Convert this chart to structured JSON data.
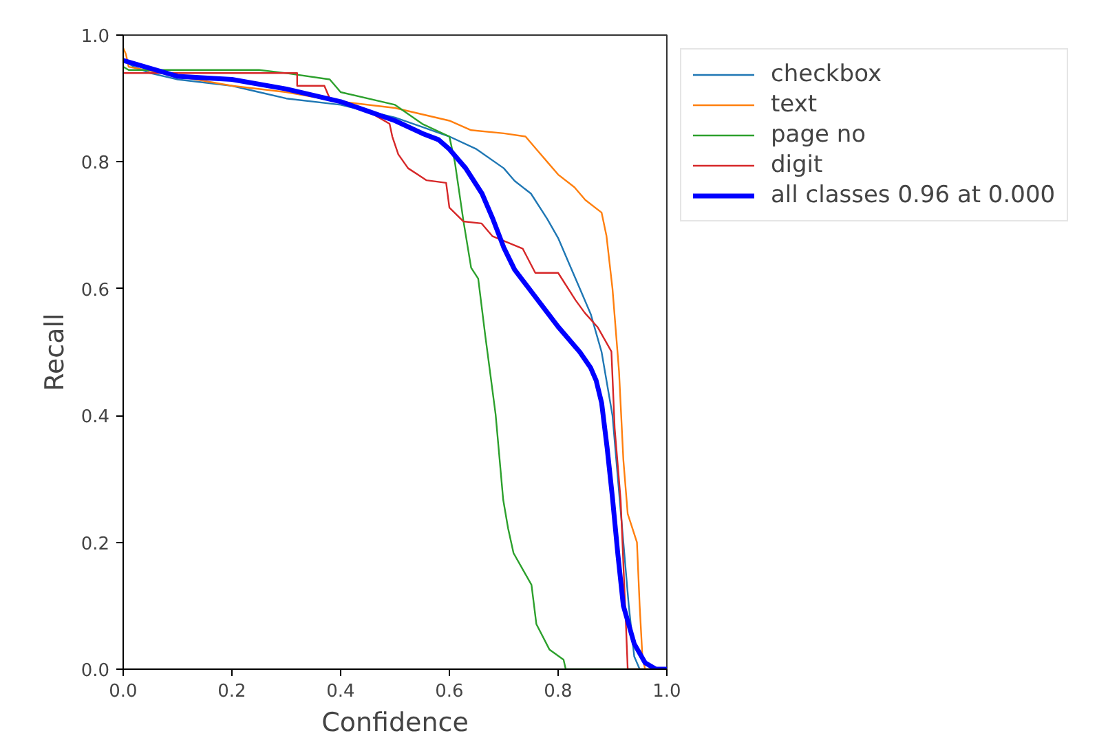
{
  "chart_data": {
    "type": "line",
    "xlabel": "Confidence",
    "ylabel": "Recall",
    "xlim": [
      0,
      1
    ],
    "ylim": [
      0,
      1
    ],
    "xticks": [
      {
        "value": 0,
        "label": "0.0"
      },
      0.2,
      0.4,
      0.6,
      0.8,
      {
        "value": 1,
        "label": "1.0"
      }
    ],
    "yticks": [
      {
        "value": 0,
        "label": "0.0"
      },
      0.2,
      0.4,
      0.6,
      0.8,
      {
        "value": 1,
        "label": "1.0"
      }
    ],
    "grid": false,
    "legend": "right",
    "marker": "none",
    "line_style": "solid",
    "series": [
      {
        "name": "checkbox",
        "color": "#1f77b4",
        "x": [
          0,
          0.02,
          0.05,
          0.1,
          0.2,
          0.25,
          0.3,
          0.4,
          0.5,
          0.55,
          0.6,
          0.65,
          0.7,
          0.72,
          0.75,
          0.78,
          0.8,
          0.82,
          0.84,
          0.86,
          0.88,
          0.9,
          0.91,
          0.92,
          0.93,
          0.94,
          0.95
        ],
        "values": [
          0.96,
          0.95,
          0.94,
          0.93,
          0.92,
          0.91,
          0.9,
          0.89,
          0.87,
          0.855,
          0.84,
          0.82,
          0.79,
          0.77,
          0.75,
          0.71,
          0.68,
          0.64,
          0.6,
          0.56,
          0.5,
          0.4,
          0.3,
          0.2,
          0.1,
          0.02,
          0
        ]
      },
      {
        "name": "text",
        "color": "#ff7f0e",
        "x": [
          0,
          0.005,
          0.01,
          0.1,
          0.2,
          0.3,
          0.4,
          0.5,
          0.55,
          0.6,
          0.64,
          0.7,
          0.74,
          0.76,
          0.78,
          0.8,
          0.83,
          0.85,
          0.88,
          0.889,
          0.9,
          0.912,
          0.92,
          0.928,
          0.945,
          0.95,
          0.955,
          0.96
        ],
        "values": [
          0.98,
          0.97,
          0.95,
          0.935,
          0.92,
          0.91,
          0.895,
          0.885,
          0.875,
          0.865,
          0.85,
          0.845,
          0.84,
          0.82,
          0.8,
          0.78,
          0.76,
          0.74,
          0.72,
          0.683,
          0.6,
          0.47,
          0.33,
          0.245,
          0.2,
          0.1,
          0.02,
          0
        ]
      },
      {
        "name": "page no",
        "color": "#2ca02c",
        "x": [
          0,
          0.01,
          0.25,
          0.3,
          0.38,
          0.4,
          0.5,
          0.55,
          0.6,
          0.61,
          0.626,
          0.64,
          0.653,
          0.666,
          0.685,
          0.699,
          0.708,
          0.718,
          0.751,
          0.76,
          0.784,
          0.81,
          0.814,
          1.0
        ],
        "values": [
          0.95,
          0.945,
          0.945,
          0.94,
          0.93,
          0.91,
          0.89,
          0.86,
          0.84,
          0.8,
          0.706,
          0.633,
          0.616,
          0.526,
          0.402,
          0.267,
          0.222,
          0.183,
          0.133,
          0.071,
          0.031,
          0.015,
          0,
          0
        ]
      },
      {
        "name": "digit",
        "color": "#d62728",
        "x": [
          0,
          0.32,
          0.32,
          0.37,
          0.38,
          0.45,
          0.49,
          0.495,
          0.506,
          0.524,
          0.558,
          0.594,
          0.6,
          0.626,
          0.659,
          0.679,
          0.735,
          0.758,
          0.8,
          0.832,
          0.849,
          0.873,
          0.898,
          0.904,
          0.915,
          0.925,
          0.928,
          1.0
        ],
        "values": [
          0.94,
          0.94,
          0.92,
          0.92,
          0.9,
          0.88,
          0.86,
          0.84,
          0.812,
          0.79,
          0.771,
          0.767,
          0.728,
          0.706,
          0.703,
          0.683,
          0.663,
          0.625,
          0.625,
          0.582,
          0.562,
          0.539,
          0.501,
          0.38,
          0.267,
          0.065,
          0,
          0
        ]
      },
      {
        "name": "all classes 0.96 at 0.000",
        "color": "#0000ff",
        "x": [
          0,
          0.1,
          0.2,
          0.3,
          0.4,
          0.45,
          0.5,
          0.55,
          0.58,
          0.6,
          0.63,
          0.66,
          0.68,
          0.7,
          0.72,
          0.76,
          0.8,
          0.84,
          0.86,
          0.87,
          0.88,
          0.89,
          0.9,
          0.91,
          0.92,
          0.94,
          0.96,
          0.98,
          1.0
        ],
        "values": [
          0.96,
          0.935,
          0.93,
          0.915,
          0.895,
          0.88,
          0.865,
          0.845,
          0.835,
          0.82,
          0.79,
          0.75,
          0.71,
          0.665,
          0.63,
          0.585,
          0.54,
          0.5,
          0.475,
          0.455,
          0.42,
          0.35,
          0.27,
          0.18,
          0.1,
          0.04,
          0.01,
          0,
          0
        ]
      }
    ]
  }
}
